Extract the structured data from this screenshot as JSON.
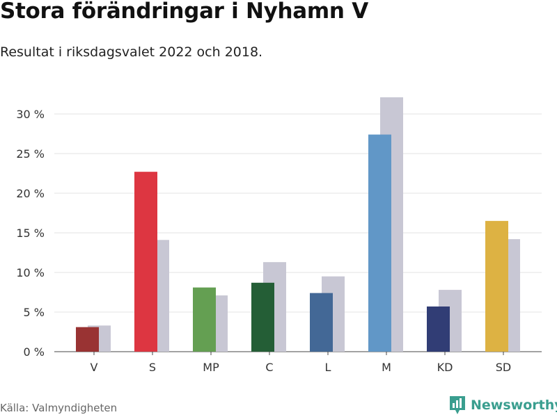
{
  "header": {
    "title": "Stora förändringar i Nyhamn V",
    "subtitle": "Resultat i riksdagsvalet 2022 och 2018."
  },
  "footer": {
    "source": "Källa: Valmyndigheten",
    "brand_name": "Newsworthy",
    "brand_icon": "newsworthy-logo-icon",
    "brand_color": "#3a9e8f"
  },
  "chart_data": {
    "type": "bar",
    "categories": [
      "V",
      "S",
      "MP",
      "C",
      "L",
      "M",
      "KD",
      "SD"
    ],
    "series": [
      {
        "values": [
          3.1,
          22.7,
          8.1,
          8.7,
          7.4,
          27.4,
          5.7,
          16.5
        ],
        "colors": [
          "#993333",
          "#dd3641",
          "#649f52",
          "#245e36",
          "#436896",
          "#6197c7",
          "#313d75",
          "#ddb243"
        ]
      },
      {
        "values": [
          3.3,
          14.1,
          7.1,
          11.3,
          9.5,
          32.1,
          7.8,
          14.2
        ],
        "color": "#c8c7d4"
      }
    ],
    "yticks": [
      0,
      5,
      10,
      15,
      20,
      25,
      30
    ],
    "ytick_labels": [
      "0 %",
      "5 %",
      "10 %",
      "15 %",
      "20 %",
      "25 %",
      "30 %"
    ],
    "ylim": [
      0,
      32.1
    ],
    "grid": true,
    "xlabel": "",
    "ylabel": ""
  }
}
